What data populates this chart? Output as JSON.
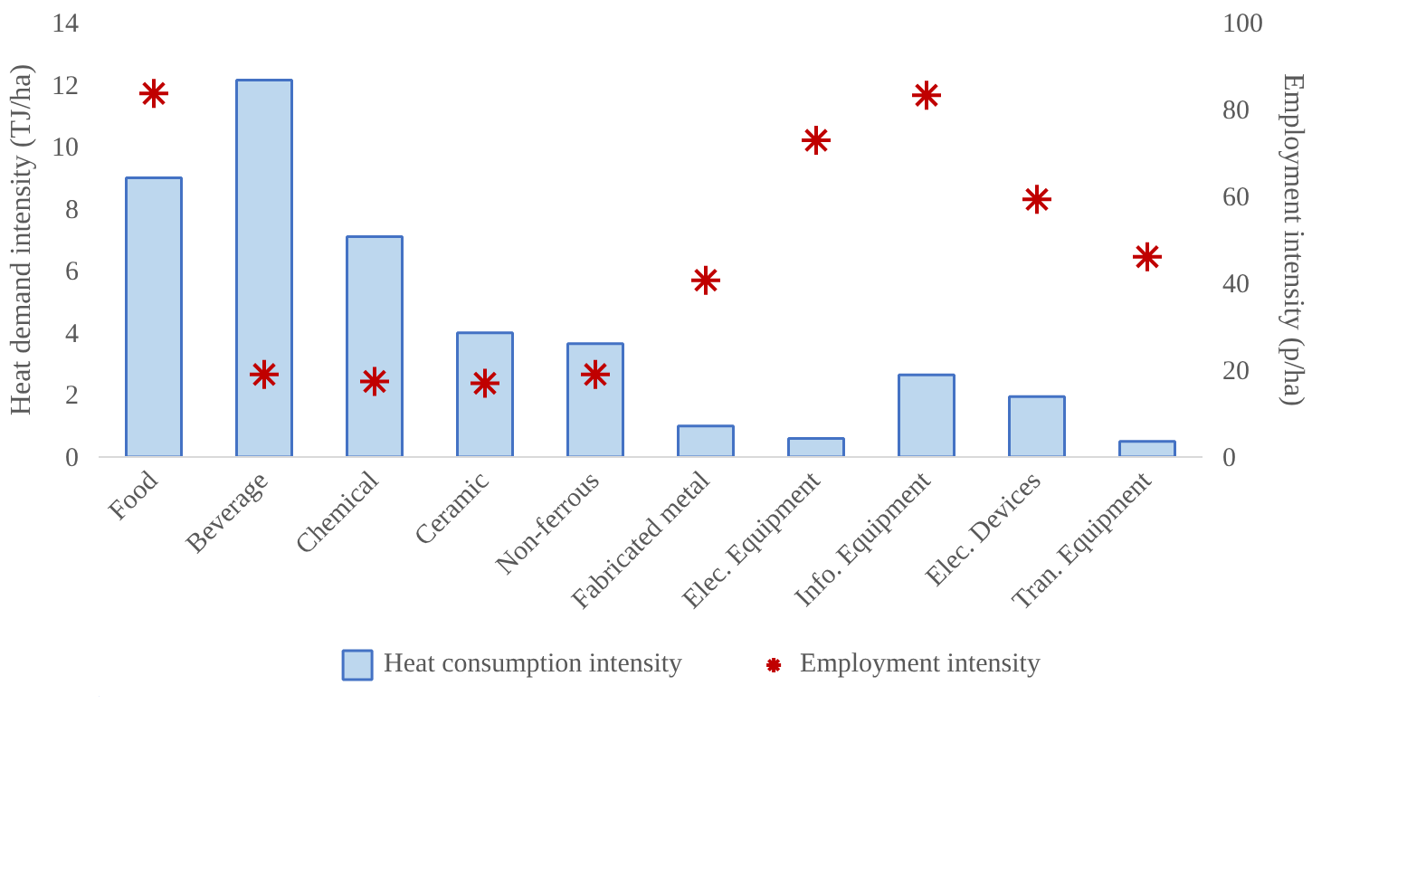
{
  "chart_data": {
    "type": "bar",
    "categories": [
      "Food",
      "Beverage",
      "Chemical",
      "Ceramic",
      "Non-ferrous",
      "Fabricated metal",
      "Elec. Equipment",
      "Info. Equipment",
      "Elec. Devices",
      "Tran. Equipment"
    ],
    "ylabel": "Heat demand intensity (TJ/ha)",
    "y2label": "Employment intensity (p/ha)",
    "ylim": [
      0,
      14
    ],
    "yticks": [
      0,
      2,
      4,
      6,
      8,
      10,
      12,
      14
    ],
    "y2lim": [
      0,
      100
    ],
    "y2ticks": [
      0,
      20,
      40,
      60,
      80,
      100
    ],
    "series": [
      {
        "name": "Heat consumption intensity",
        "color": "#bdd7ee",
        "values": [
          9.0,
          12.15,
          7.1,
          4.0,
          3.65,
          1.0,
          0.6,
          2.65,
          1.95,
          0.5
        ]
      },
      {
        "name": "Employment intensity",
        "type": "scatter",
        "axis": "y2",
        "marker": "cross",
        "color": "#c00000",
        "values": [
          83.7,
          19,
          17.4,
          17,
          19,
          40.7,
          72.9,
          83.3,
          59.3,
          46.1
        ]
      }
    ],
    "legend": "bottom",
    "grid": false
  }
}
